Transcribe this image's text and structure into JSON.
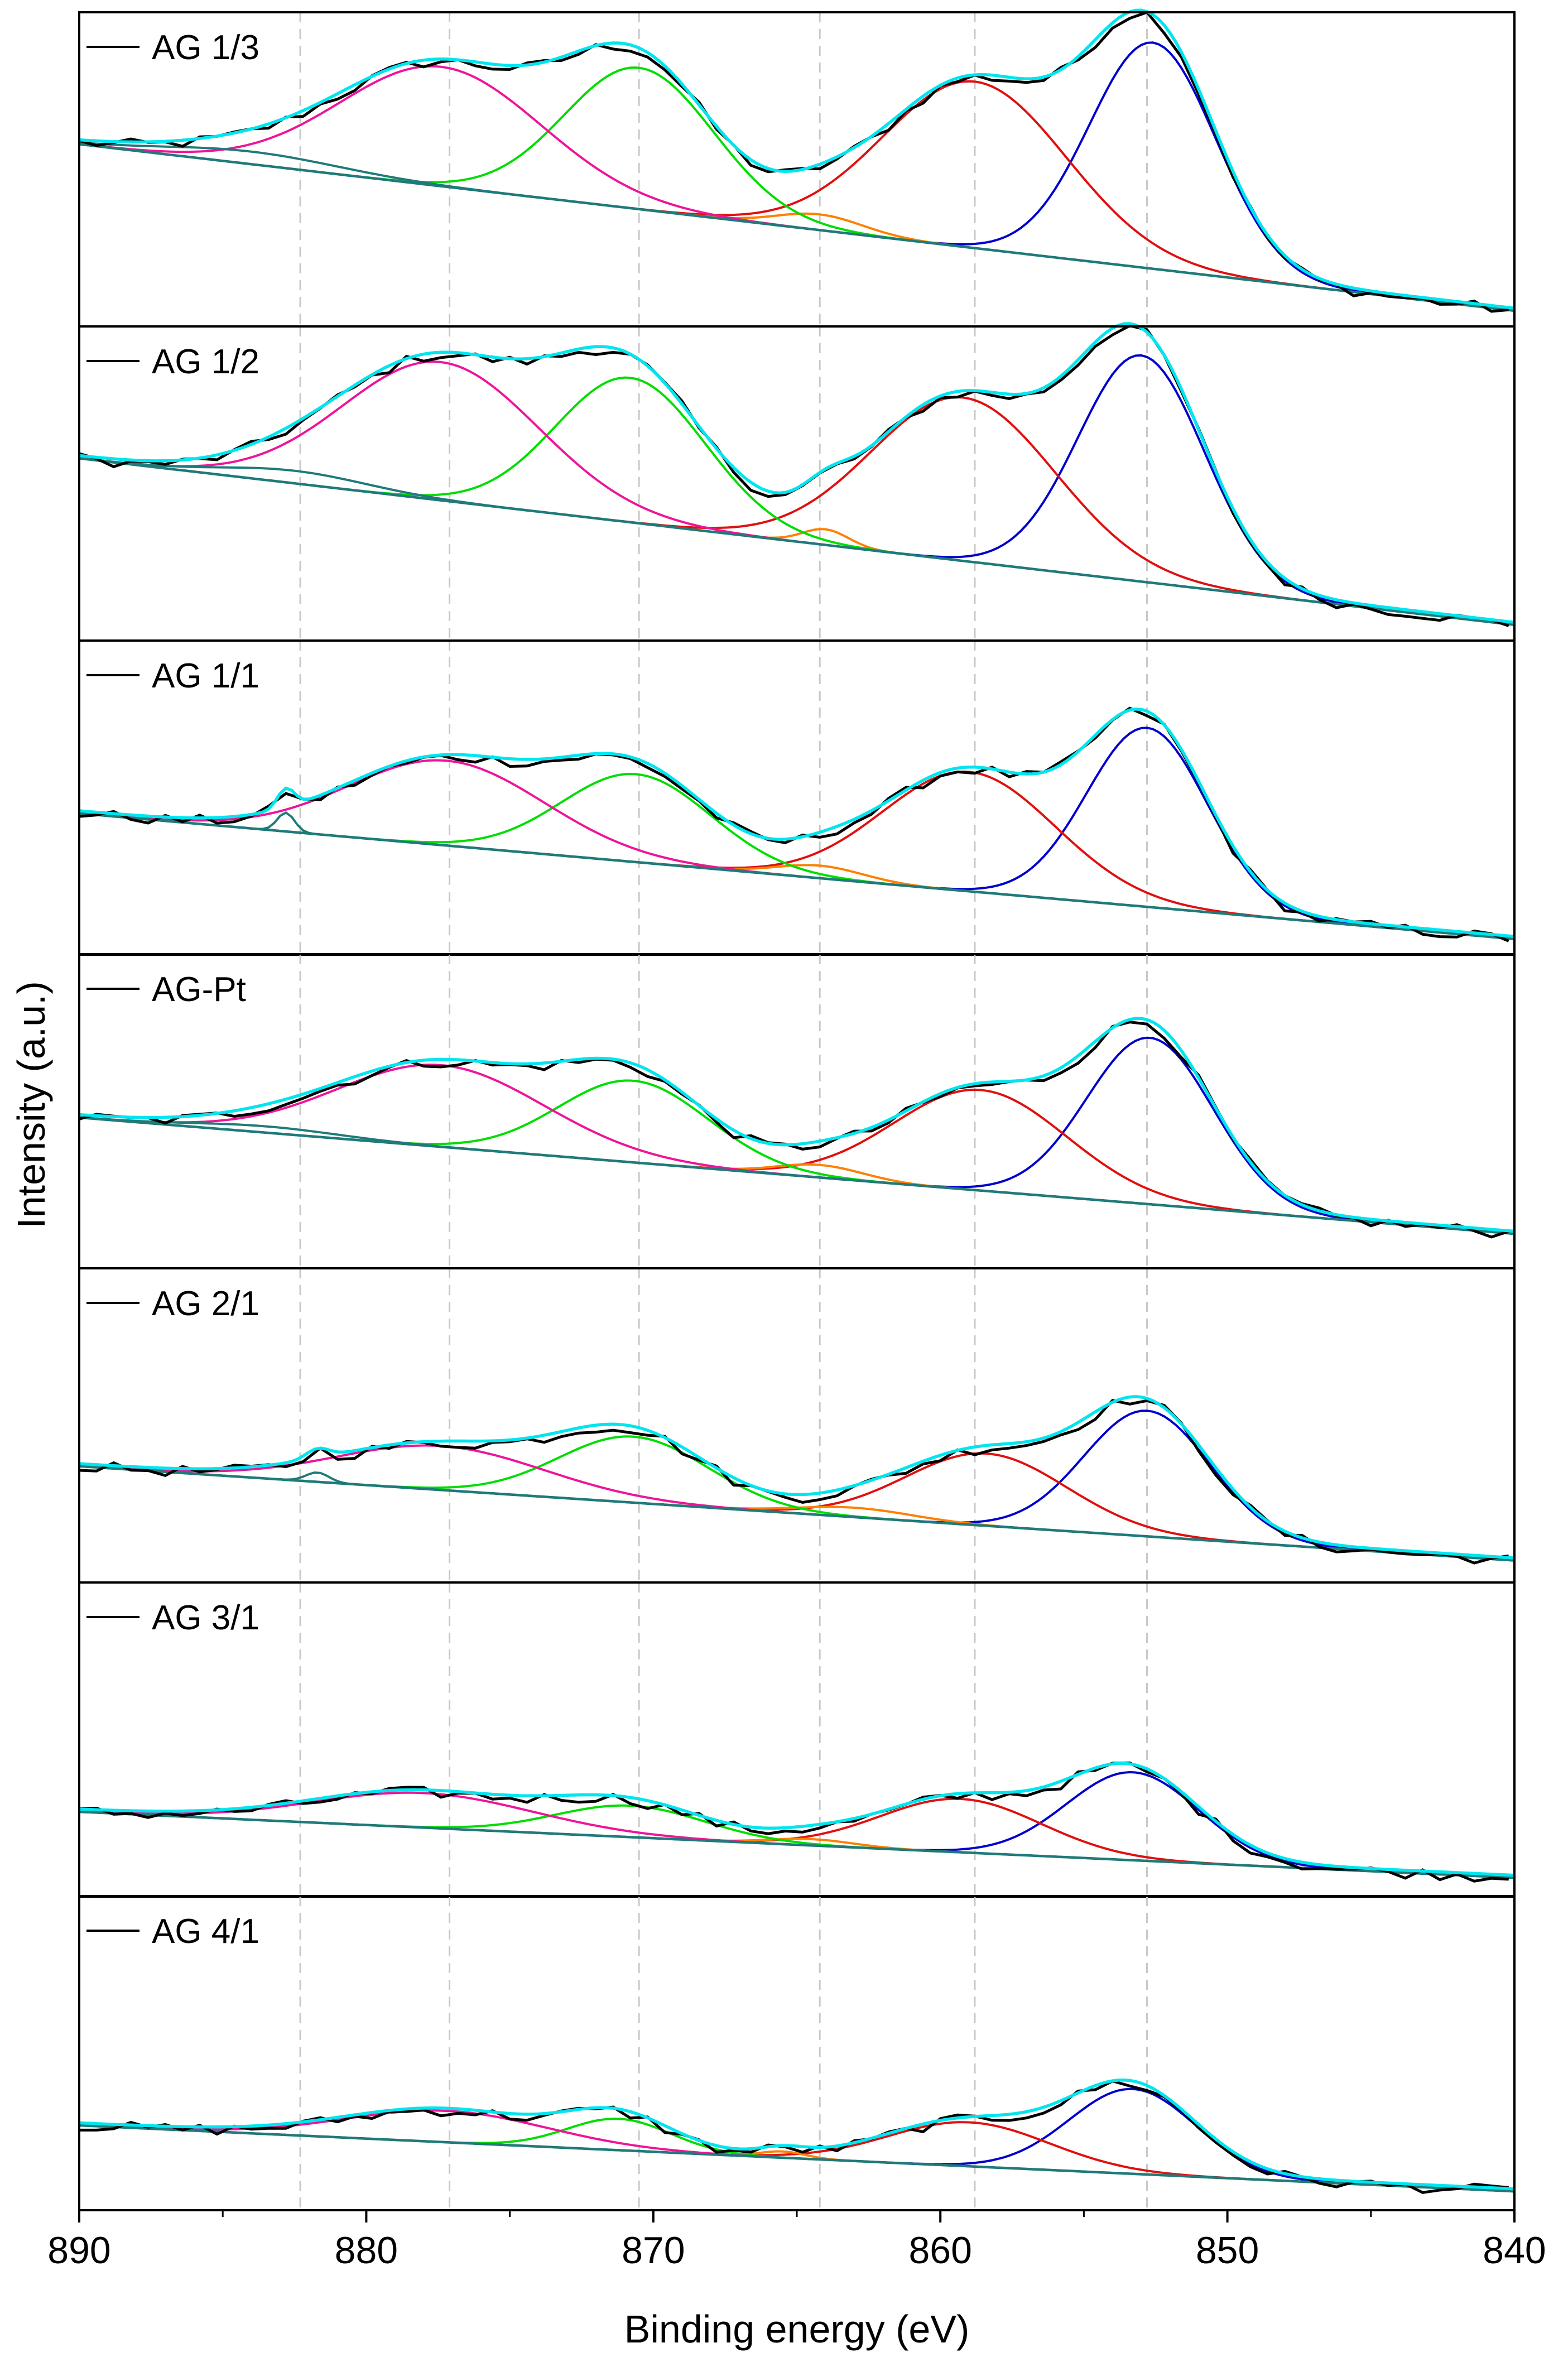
{
  "chart_data": {
    "type": "line",
    "title": "",
    "xlabel": "Binding energy (eV)",
    "ylabel": "Intensity (a.u.)",
    "xlim": [
      890,
      840
    ],
    "x_reversed": true,
    "x_ticks": [
      890,
      880,
      870,
      860,
      850,
      840
    ],
    "x_tick_labels": [
      "890",
      "880",
      "870",
      "860",
      "850",
      "840"
    ],
    "reference_lines_eV": [
      882.3,
      877.1,
      870.5,
      864.2,
      858.8,
      852.8
    ],
    "colors": {
      "data": "#000000",
      "envelope": "#00e5ee",
      "background": "#1f7a7a",
      "peak_852_8": "#0000cc",
      "peak_858_8": "#e01010",
      "peak_864_2": "#ff8000",
      "peak_870_5": "#00dd00",
      "peak_877_1": "#ee1499"
    },
    "components": [
      "data",
      "envelope",
      "background",
      "peak 852.8 eV",
      "peak 858.8 eV",
      "peak 864.2 eV",
      "peak 870.5 eV",
      "peak 877.1 eV"
    ],
    "panels": [
      {
        "label": "AG 1/3",
        "background": {
          "start": 0.58,
          "end": 0.05
        },
        "peaks": [
          {
            "center": 852.6,
            "amplitude": 0.72,
            "sigma": 2.2
          },
          {
            "center": 858.8,
            "amplitude": 0.53,
            "sigma": 3.2
          },
          {
            "center": 864.2,
            "amplitude": 0.05,
            "sigma": 1.5
          },
          {
            "center": 870.5,
            "amplitude": 0.45,
            "sigma": 2.6
          },
          {
            "center": 877.4,
            "amplitude": 0.38,
            "sigma": 3.5
          },
          {
            "center": 884.0,
            "amplitude": 0.04,
            "sigma": 3.0
          }
        ]
      },
      {
        "label": "AG 1/2",
        "background": {
          "start": 0.58,
          "end": 0.05
        },
        "peaks": [
          {
            "center": 853.0,
            "amplitude": 0.72,
            "sigma": 2.2
          },
          {
            "center": 859.2,
            "amplitude": 0.52,
            "sigma": 3.2
          },
          {
            "center": 864.0,
            "amplitude": 0.05,
            "sigma": 0.8
          },
          {
            "center": 870.8,
            "amplitude": 0.46,
            "sigma": 2.6
          },
          {
            "center": 877.4,
            "amplitude": 0.44,
            "sigma": 3.4
          },
          {
            "center": 882.5,
            "amplitude": 0.04,
            "sigma": 2.5
          }
        ]
      },
      {
        "label": "AG 1/1",
        "background": {
          "start": 0.45,
          "end": 0.05
        },
        "peaks": [
          {
            "center": 852.8,
            "amplitude": 0.57,
            "sigma": 2.1
          },
          {
            "center": 859.0,
            "amplitude": 0.38,
            "sigma": 3.0
          },
          {
            "center": 864.2,
            "amplitude": 0.04,
            "sigma": 1.5
          },
          {
            "center": 870.6,
            "amplitude": 0.28,
            "sigma": 2.6
          },
          {
            "center": 877.2,
            "amplitude": 0.27,
            "sigma": 3.4
          },
          {
            "center": 882.8,
            "amplitude": 0.06,
            "sigma": 0.3
          }
        ]
      },
      {
        "label": "AG-Pt",
        "background": {
          "start": 0.48,
          "end": 0.11
        },
        "peaks": [
          {
            "center": 852.7,
            "amplitude": 0.53,
            "sigma": 2.2
          },
          {
            "center": 858.6,
            "amplitude": 0.32,
            "sigma": 3.0
          },
          {
            "center": 864.2,
            "amplitude": 0.04,
            "sigma": 1.5
          },
          {
            "center": 870.7,
            "amplitude": 0.26,
            "sigma": 2.6
          },
          {
            "center": 877.4,
            "amplitude": 0.26,
            "sigma": 3.6
          },
          {
            "center": 883.5,
            "amplitude": 0.02,
            "sigma": 2.5
          }
        ]
      },
      {
        "label": "AG 2/1",
        "background": {
          "start": 0.37,
          "end": 0.07
        },
        "peaks": [
          {
            "center": 852.8,
            "amplitude": 0.4,
            "sigma": 2.2
          },
          {
            "center": 858.4,
            "amplitude": 0.23,
            "sigma": 2.8
          },
          {
            "center": 863.0,
            "amplitude": 0.03,
            "sigma": 2.0
          },
          {
            "center": 870.7,
            "amplitude": 0.21,
            "sigma": 2.6
          },
          {
            "center": 877.4,
            "amplitude": 0.14,
            "sigma": 3.6
          },
          {
            "center": 881.7,
            "amplitude": 0.03,
            "sigma": 0.4
          }
        ]
      },
      {
        "label": "AG 3/1",
        "background": {
          "start": 0.27,
          "end": 0.06
        },
        "peaks": [
          {
            "center": 853.3,
            "amplitude": 0.28,
            "sigma": 2.3
          },
          {
            "center": 859.3,
            "amplitude": 0.17,
            "sigma": 2.8
          },
          {
            "center": 864.5,
            "amplitude": 0.02,
            "sigma": 1.5
          },
          {
            "center": 870.8,
            "amplitude": 0.1,
            "sigma": 2.6
          },
          {
            "center": 878.0,
            "amplitude": 0.11,
            "sigma": 3.8
          }
        ]
      },
      {
        "label": "AG 4/1",
        "background": {
          "start": 0.27,
          "end": 0.06
        },
        "peaks": [
          {
            "center": 853.3,
            "amplitude": 0.27,
            "sigma": 2.2
          },
          {
            "center": 859.0,
            "amplitude": 0.14,
            "sigma": 2.8
          },
          {
            "center": 865.5,
            "amplitude": 0.02,
            "sigma": 0.8
          },
          {
            "center": 871.2,
            "amplitude": 0.1,
            "sigma": 1.8
          },
          {
            "center": 877.2,
            "amplitude": 0.1,
            "sigma": 3.5
          }
        ]
      }
    ]
  }
}
